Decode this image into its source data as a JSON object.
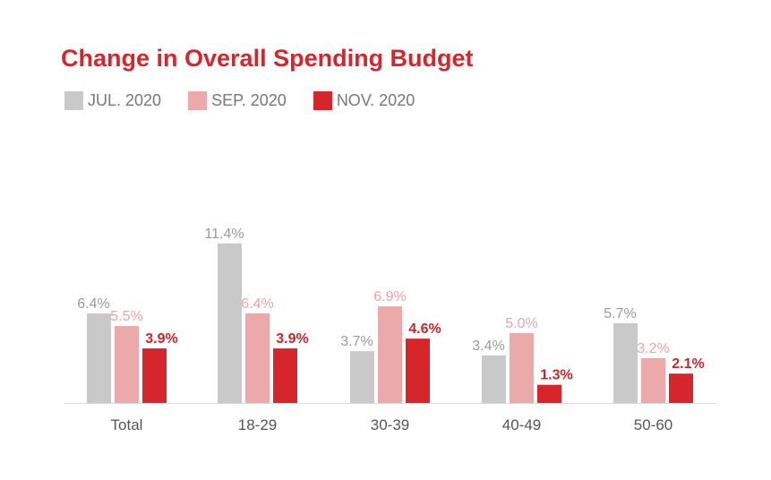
{
  "chart_data": {
    "type": "bar",
    "title": "Change in Overall Spending Budget",
    "categories": [
      "Total",
      "18-29",
      "30-39",
      "40-49",
      "50-60"
    ],
    "series": [
      {
        "name": "JUL. 2020",
        "color": "#c9c9c9",
        "label_color": "#9a9a9a",
        "values": [
          6.4,
          11.4,
          3.7,
          3.4,
          5.7
        ],
        "labels": [
          "6.4%",
          "11.4%",
          "3.7%",
          "3.4%",
          "5.7%"
        ]
      },
      {
        "name": "SEP. 2020",
        "color": "#ebaaa9",
        "label_color": "#eba5a4",
        "values": [
          5.5,
          6.4,
          6.9,
          5.0,
          3.2
        ],
        "labels": [
          "5.5%",
          "6.4%",
          "6.9%",
          "5.0%",
          "3.2%"
        ]
      },
      {
        "name": "NOV. 2020",
        "color": "#d7262b",
        "label_color": "#c8262b",
        "values": [
          3.9,
          3.9,
          4.6,
          1.3,
          2.1
        ],
        "labels": [
          "3.9%",
          "3.9%",
          "4.6%",
          "1.3%",
          "2.1%"
        ]
      }
    ],
    "xlabel": "",
    "ylabel": "",
    "ylim": [
      0,
      12
    ],
    "grid": false,
    "legend": "top-left"
  }
}
